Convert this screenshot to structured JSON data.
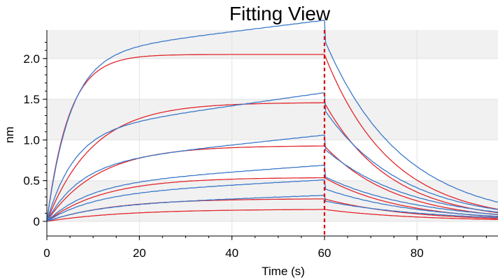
{
  "chart_data": {
    "type": "line",
    "title": "Fitting View",
    "xlabel": "Time (s)",
    "ylabel": "nm",
    "xlim": [
      0,
      97.5
    ],
    "ylim": [
      -0.18,
      2.35
    ],
    "x_ticks": [
      0,
      20,
      40,
      60,
      80
    ],
    "x_tick_labels": [
      "0",
      "20",
      "40",
      "60",
      "80"
    ],
    "y_ticks": [
      0,
      0.5,
      1.0,
      1.5,
      2.0
    ],
    "y_tick_labels": [
      "0",
      "0.5",
      "1.0",
      "1.5",
      "2.0"
    ],
    "grid": true,
    "association_end": 60,
    "marker_line": {
      "x": 60,
      "color": "#dd0000",
      "style": "dashed"
    },
    "colors": {
      "measured": "#3a78c9",
      "fit": "#e1262c"
    },
    "measured": [
      {
        "plateau": 2.05,
        "end_value": 2.23,
        "k_on": 0.2,
        "drift": 0.007,
        "k_off": 0.06
      },
      {
        "plateau": 1.1,
        "end_value": 1.37,
        "k_on": 0.18,
        "drift": 0.008,
        "k_off": 0.06
      },
      {
        "plateau": 0.7,
        "end_value": 0.89,
        "k_on": 0.15,
        "drift": 0.006,
        "k_off": 0.055
      },
      {
        "plateau": 0.45,
        "end_value": 0.55,
        "k_on": 0.12,
        "drift": 0.004,
        "k_off": 0.05
      },
      {
        "plateau": 0.33,
        "end_value": 0.4,
        "k_on": 0.11,
        "drift": 0.003,
        "k_off": 0.05
      },
      {
        "plateau": 0.2,
        "end_value": 0.25,
        "k_on": 0.1,
        "drift": 0.002,
        "k_off": 0.045
      }
    ],
    "fit": [
      {
        "plateau": 2.05,
        "k_on": 0.21,
        "k_off": 0.07
      },
      {
        "plateau": 1.46,
        "k_on": 0.1,
        "k_off": 0.07
      },
      {
        "plateau": 0.93,
        "k_on": 0.09,
        "k_off": 0.065
      },
      {
        "plateau": 0.54,
        "k_on": 0.08,
        "k_off": 0.06
      },
      {
        "plateau": 0.28,
        "k_on": 0.07,
        "k_off": 0.055
      },
      {
        "plateau": 0.15,
        "k_on": 0.06,
        "k_off": 0.05
      }
    ]
  }
}
